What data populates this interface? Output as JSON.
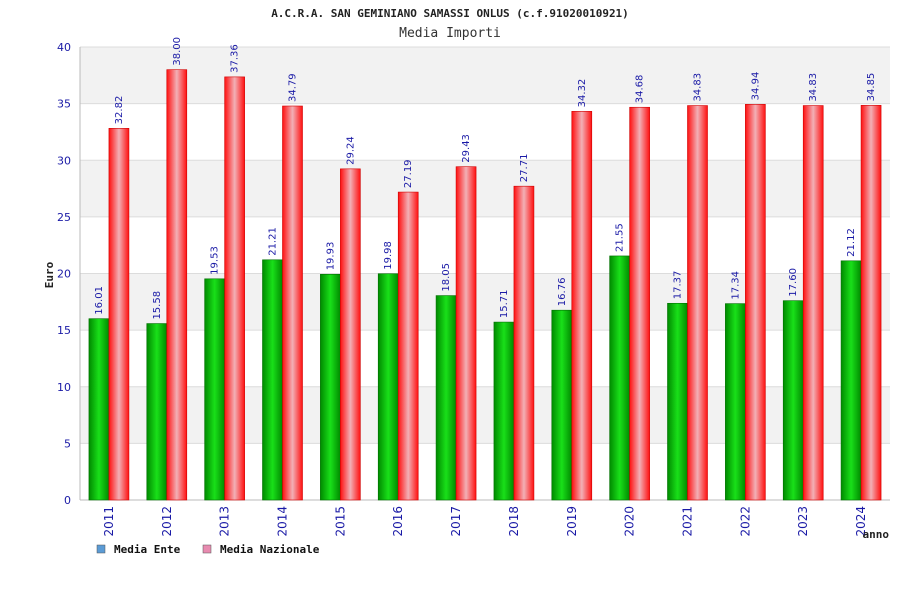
{
  "chart_data": {
    "type": "bar",
    "title": "A.C.R.A. SAN GEMINIANO SAMASSI ONLUS (c.f.91020010921)",
    "subtitle": "Media Importi",
    "xlabel": "anno",
    "ylabel": "Euro",
    "ylim": [
      0,
      40
    ],
    "yticks": [
      0,
      5,
      10,
      15,
      20,
      25,
      30,
      35,
      40
    ],
    "categories": [
      "2011",
      "2012",
      "2013",
      "2014",
      "2015",
      "2016",
      "2017",
      "2018",
      "2019",
      "2020",
      "2021",
      "2022",
      "2023",
      "2024"
    ],
    "series": [
      {
        "name": "Media Ente",
        "color": "#00c000",
        "legend_color": "#5b9bd5",
        "values": [
          16.01,
          15.58,
          19.53,
          21.21,
          19.93,
          19.98,
          18.05,
          15.71,
          16.76,
          21.55,
          17.37,
          17.34,
          17.6,
          21.12
        ],
        "labels": [
          "16.01",
          "15.58",
          "19.53",
          "21.21",
          "19.93",
          "19.98",
          "18.05",
          "15.71",
          "16.76",
          "21.55",
          "17.37",
          "17.34",
          "17.60",
          "21.12"
        ]
      },
      {
        "name": "Media Nazionale",
        "color": "#ff2020",
        "legend_color": "#e88bb0",
        "values": [
          32.82,
          38.0,
          37.36,
          34.79,
          29.24,
          27.19,
          29.43,
          27.71,
          34.32,
          34.68,
          34.83,
          34.94,
          34.83,
          34.85
        ],
        "labels": [
          "32.82",
          "38.00",
          "37.36",
          "34.79",
          "29.24",
          "27.19",
          "29.43",
          "27.71",
          "34.32",
          "34.68",
          "34.83",
          "34.94",
          "34.83",
          "34.85"
        ]
      }
    ],
    "grid": true,
    "legend_position": "bottom-left"
  }
}
